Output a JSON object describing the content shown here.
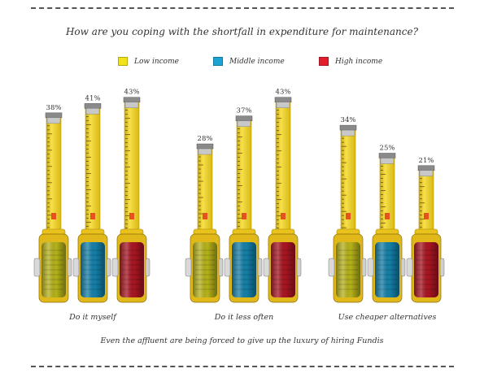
{
  "chart_data": {
    "type": "bar",
    "title": "How are you coping with the shortfall in expenditure for maintenance?",
    "categories": [
      "Do it myself",
      "Do it less often",
      "Use cheaper alternatives"
    ],
    "series": [
      {
        "name": "Low income",
        "color": "#f2e21a",
        "values": [
          38,
          28,
          34
        ]
      },
      {
        "name": "Middle income",
        "color": "#1ba3d6",
        "values": [
          41,
          37,
          25
        ]
      },
      {
        "name": "High income",
        "color": "#e21d2c",
        "values": [
          43,
          43,
          21
        ]
      }
    ],
    "value_labels": [
      [
        "38%",
        "41%",
        "43%"
      ],
      [
        "28%",
        "37%",
        "43%"
      ],
      [
        "34%",
        "25%",
        "21%"
      ]
    ],
    "legend_position": "top",
    "grid": false
  },
  "caption": "Even the affluent are being forced to give up the luxury of hiring Fundis",
  "colors": {
    "tape": "#f2d21f",
    "tape_edge": "#c9a80f",
    "body_low": "#b5b21a",
    "body_mid": "#147fa8",
    "body_high": "#a81522"
  },
  "icons": {
    "bar_mark": "measuring-tape-icon"
  }
}
